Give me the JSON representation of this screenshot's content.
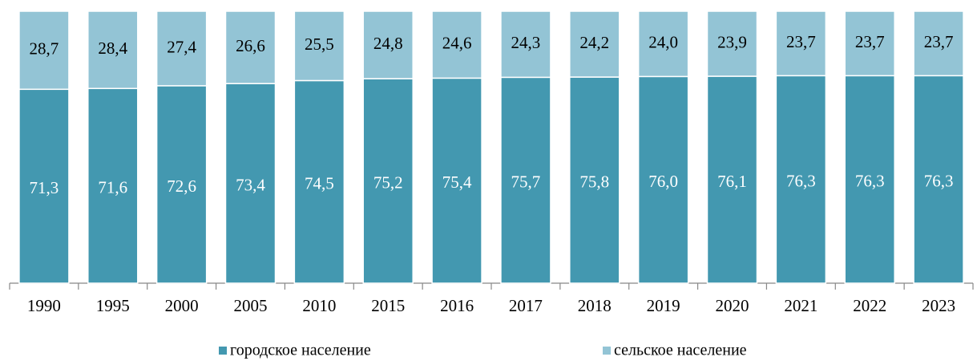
{
  "chart_data": {
    "type": "stacked_bar",
    "categories": [
      "1990",
      "1995",
      "2000",
      "2005",
      "2010",
      "2015",
      "2016",
      "2017",
      "2018",
      "2019",
      "2020",
      "2021",
      "2022",
      "2023"
    ],
    "series": [
      {
        "name": "городское население",
        "color": "#4398b0",
        "values": [
          71.3,
          71.6,
          72.6,
          73.4,
          74.5,
          75.2,
          75.4,
          75.7,
          75.8,
          76.0,
          76.1,
          76.3,
          76.3,
          76.3
        ],
        "value_labels": [
          "71,3",
          "71,6",
          "72,6",
          "73,4",
          "74,5",
          "75,2",
          "75,4",
          "75,7",
          "75,8",
          "76,0",
          "76,1",
          "76,3",
          "76,3",
          "76,3"
        ]
      },
      {
        "name": "сельское население",
        "color": "#93c4d5",
        "values": [
          28.7,
          28.4,
          27.4,
          26.6,
          25.5,
          24.8,
          24.6,
          24.3,
          24.2,
          24.0,
          23.9,
          23.7,
          23.7,
          23.7
        ],
        "value_labels": [
          "28,7",
          "28,4",
          "27,4",
          "26,6",
          "25,5",
          "24,8",
          "24,6",
          "24,3",
          "24,2",
          "24,0",
          "23,9",
          "23,7",
          "23,7",
          "23,7"
        ]
      }
    ],
    "ylim": [
      0,
      100
    ],
    "legend": "bottom"
  }
}
